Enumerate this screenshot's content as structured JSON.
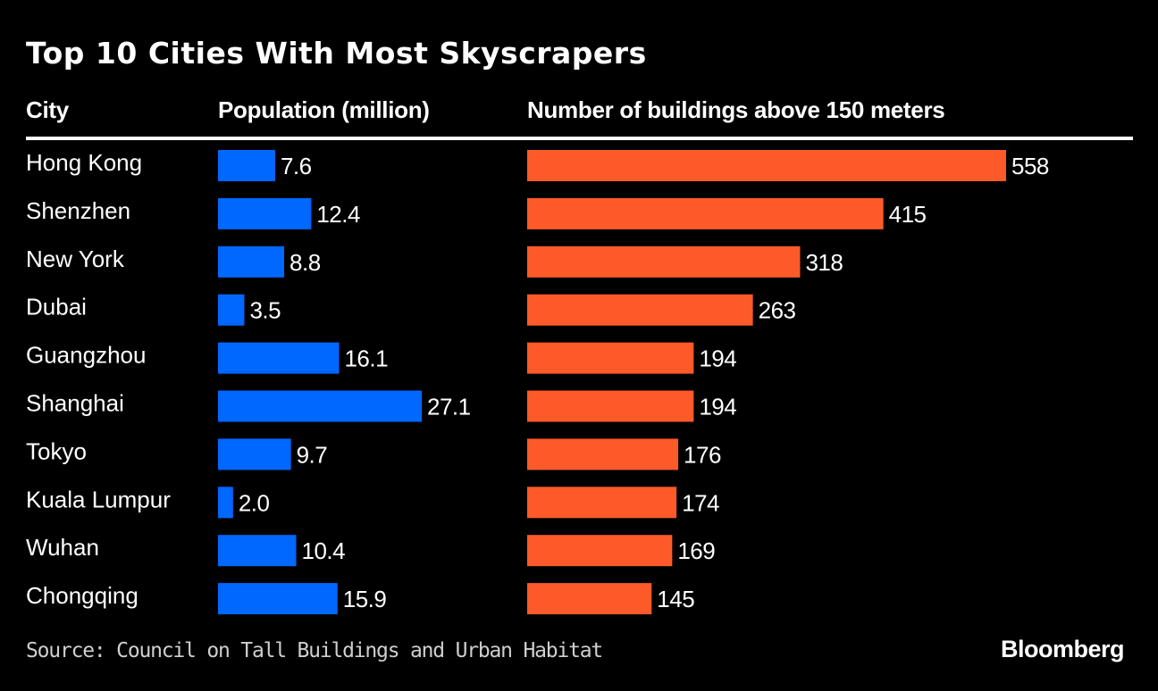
{
  "chart_data": {
    "type": "bar",
    "orientation": "horizontal",
    "title": "Top 10 Cities With Most Skyscrapers",
    "column_headers": {
      "city": "City",
      "population": "Population (million)",
      "buildings": "Number of buildings above 150 meters"
    },
    "categories": [
      "Hong Kong",
      "Shenzhen",
      "New York",
      "Dubai",
      "Guangzhou",
      "Shanghai",
      "Tokyo",
      "Kuala Lumpur",
      "Wuhan",
      "Chongqing"
    ],
    "series": [
      {
        "name": "Population (million)",
        "color": "#0068ff",
        "values": [
          7.6,
          12.4,
          8.8,
          3.5,
          16.1,
          27.1,
          9.7,
          2.0,
          10.4,
          15.9
        ],
        "labels": [
          "7.6",
          "12.4",
          "8.8",
          "3.5",
          "16.1",
          "27.1",
          "9.7",
          "2.0",
          "10.4",
          "15.9"
        ]
      },
      {
        "name": "Number of buildings above 150 meters",
        "color": "#fd5a2a",
        "values": [
          558,
          415,
          318,
          263,
          194,
          194,
          176,
          174,
          169,
          145
        ],
        "labels": [
          "558",
          "415",
          "318",
          "263",
          "194",
          "194",
          "176",
          "174",
          "169",
          "145"
        ]
      }
    ],
    "source": "Source: Council on Tall Buildings and Urban Habitat",
    "brand": "Bloomberg",
    "grid": false,
    "legend": "none"
  },
  "colors": {
    "background": "#000000",
    "text": "#ffffff",
    "population_bar": "#0068ff",
    "buildings_bar": "#fd5a2a"
  }
}
